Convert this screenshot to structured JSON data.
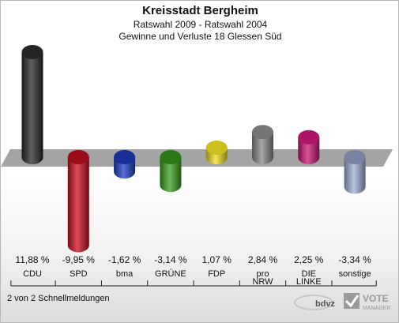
{
  "header": {
    "title": "Kreisstadt Bergheim",
    "subtitle": "Ratswahl 2009 - Ratswahl 2004",
    "subtitle2": "Gewinne und Verluste 18 Glessen Süd"
  },
  "footer": {
    "note": "2 von 2 Schnellmeldungen"
  },
  "logo": {
    "brand": "VOTE",
    "brand_sub": "MANAGER",
    "maker": "bdvz"
  },
  "chart_data": {
    "type": "bar",
    "categories": [
      "CDU",
      "SPD",
      "bma",
      "GRÜNE",
      "FDP",
      "pro NRW",
      "DIE LINKE",
      "sonstige"
    ],
    "category_lines": [
      [
        "CDU"
      ],
      [
        "SPD"
      ],
      [
        "bma"
      ],
      [
        "GRÜNE"
      ],
      [
        "FDP"
      ],
      [
        "pro",
        "NRW"
      ],
      [
        "DIE",
        "LINKE"
      ],
      [
        "sonstige"
      ]
    ],
    "values": [
      11.88,
      -9.95,
      -1.62,
      -3.14,
      1.07,
      2.84,
      2.25,
      -3.34
    ],
    "value_labels": [
      "11,88 %",
      "-9,95 %",
      "-1,62 %",
      "-3,14 %",
      "1,07 %",
      "2,84 %",
      "2,25 %",
      "-3,34 %"
    ],
    "colors": [
      "#2b2b2b",
      "#cc1020",
      "#2040c8",
      "#3aa020",
      "#f0e020",
      "#8a8a8a",
      "#cc1878",
      "#a0b0d8"
    ],
    "unit": "%"
  }
}
